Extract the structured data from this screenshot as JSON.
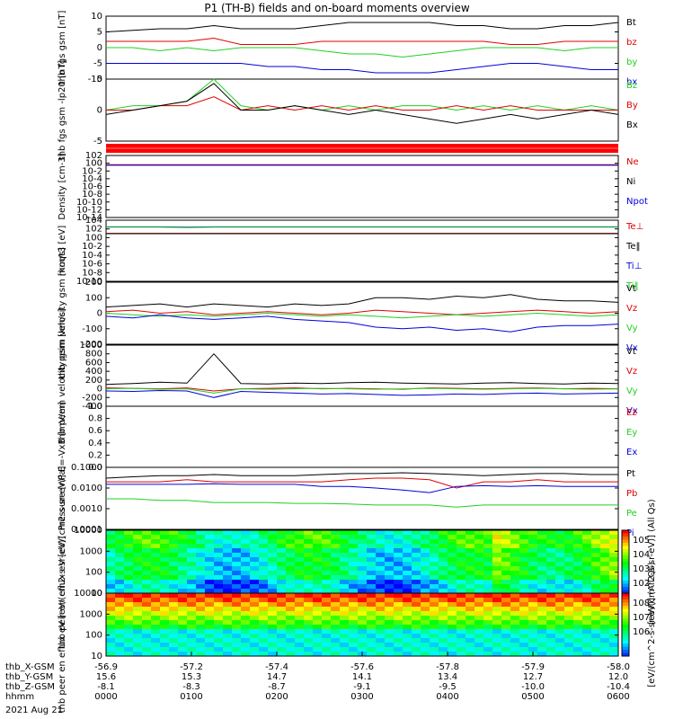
{
  "title": "P1 (TH-B) fields and on-board moments overview",
  "date": "2021 Aug 21",
  "colors": {
    "black": "#000000",
    "red": "#e00000",
    "green": "#20d020",
    "blue": "#0000dd"
  },
  "ephemeris": {
    "labels": [
      "thb_X-GSM",
      "thb_Y-GSM",
      "thb_Z-GSM",
      "hhmm"
    ],
    "columns": [
      [
        "-56.9",
        "15.6",
        "-8.1",
        "0000"
      ],
      [
        "-57.2",
        "15.3",
        "-8.3",
        "0100"
      ],
      [
        "-57.4",
        "14.7",
        "-8.7",
        "0200"
      ],
      [
        "-57.6",
        "14.1",
        "-9.1",
        "0300"
      ],
      [
        "-57.8",
        "13.4",
        "-9.5",
        "0400"
      ],
      [
        "-57.9",
        "12.7",
        "-10.0",
        "0500"
      ],
      [
        "-58.0",
        "12.0",
        "-10.4",
        "0600"
      ]
    ]
  },
  "chart_data": [
    {
      "type": "line",
      "ylabel": "thb fgs gsm [nT]",
      "ylim": [
        -10,
        10
      ],
      "yticks": [
        "10",
        "5",
        "0",
        "-5",
        "-10"
      ],
      "series": [
        {
          "name": "Bt",
          "color": "#000000",
          "values": [
            5,
            5.5,
            6,
            6,
            7,
            6,
            6,
            6,
            7,
            8,
            8,
            8,
            8,
            7,
            7,
            6,
            6,
            7,
            7,
            8
          ]
        },
        {
          "name": "bz",
          "color": "#e00000",
          "values": [
            2,
            2,
            2,
            2,
            3,
            1,
            1,
            1,
            2,
            2,
            2,
            2,
            2,
            2,
            2,
            1,
            1,
            2,
            2,
            2
          ]
        },
        {
          "name": "by",
          "color": "#20d020",
          "values": [
            0,
            0,
            -1,
            0,
            -1,
            0,
            0,
            0,
            -1,
            -2,
            -2,
            -3,
            -2,
            -1,
            0,
            0,
            0,
            -1,
            0,
            0
          ]
        },
        {
          "name": "bx",
          "color": "#0000dd",
          "values": [
            -5,
            -5,
            -5,
            -5,
            -5,
            -5,
            -6,
            -6,
            -7,
            -7,
            -8,
            -8,
            -8,
            -7,
            -6,
            -5,
            -5,
            -6,
            -7,
            -7
          ]
        }
      ]
    },
    {
      "type": "line",
      "ylabel": "thb fgs gsm -lp20 [nT]",
      "ylim": [
        -7,
        7
      ],
      "yticks": [
        "5",
        "0",
        "-5"
      ],
      "series": [
        {
          "name": "Bz",
          "color": "#20d020",
          "values": [
            0,
            1,
            1,
            2,
            8,
            1,
            0,
            1,
            0,
            1,
            0,
            1,
            1,
            0,
            1,
            0,
            1,
            0,
            1,
            0
          ]
        },
        {
          "name": "By",
          "color": "#e00000",
          "values": [
            0,
            0,
            1,
            1,
            3,
            0,
            1,
            0,
            1,
            0,
            1,
            0,
            0,
            1,
            0,
            1,
            0,
            0,
            0,
            0
          ]
        },
        {
          "name": "Bx",
          "color": "#000000",
          "values": [
            -1,
            0,
            1,
            2,
            6,
            0,
            0,
            1,
            0,
            -1,
            0,
            -1,
            -2,
            -3,
            -2,
            -1,
            -2,
            -1,
            0,
            -1
          ]
        }
      ]
    },
    {
      "type": "line",
      "ylabel": "Density [cm-3]",
      "log": true,
      "ylim": [
        1e-14,
        100
      ],
      "yticks": [
        "10^2",
        "10^0",
        "10^-2",
        "10^-4",
        "10^-6",
        "10^-8",
        "10^-10",
        "10^-12",
        "10^-14"
      ],
      "series": [
        {
          "name": "Ne",
          "color": "#e00000",
          "values": [
            0.4,
            0.4,
            0.4,
            0.4,
            0.4,
            0.4,
            0.4,
            0.4,
            0.4,
            0.4,
            0.4,
            0.4,
            0.4,
            0.4,
            0.4,
            0.4,
            0.4,
            0.4,
            0.4,
            0.4
          ]
        },
        {
          "name": "Ni",
          "color": "#000000",
          "values": []
        },
        {
          "name": "Npot",
          "color": "#0000dd",
          "values": [
            0.3,
            0.3,
            0.3,
            0.3,
            0.3,
            0.3,
            0.3,
            0.3,
            0.3,
            0.3,
            0.3,
            0.3,
            0.3,
            0.3,
            0.3,
            0.3,
            0.3,
            0.3,
            0.3,
            0.3
          ]
        }
      ]
    },
    {
      "type": "line",
      "ylabel": "moqt3 [eV]",
      "log": true,
      "ylim": [
        1e-10,
        10000
      ],
      "yticks": [
        "10^4",
        "10^2",
        "10^0",
        "10^-2",
        "10^-4",
        "10^-6",
        "10^-8",
        "10^-10"
      ],
      "series": [
        {
          "name": "Te⊥",
          "color": "#e00000",
          "values": [
            10,
            10,
            10,
            10,
            10,
            10,
            10,
            10,
            10,
            10,
            10,
            10,
            10,
            10,
            10,
            10,
            10,
            10,
            10,
            10
          ]
        },
        {
          "name": "Te‖",
          "color": "#000000",
          "values": [
            8,
            8,
            8,
            8,
            8,
            8,
            8,
            8,
            8,
            8,
            8,
            8,
            8,
            8,
            8,
            8,
            8,
            8,
            8,
            8
          ]
        },
        {
          "name": "Ti⊥",
          "color": "#0000dd",
          "values": [
            300,
            300,
            300,
            250,
            300,
            300,
            300,
            300,
            300,
            300,
            300,
            300,
            300,
            300,
            300,
            300,
            300,
            300,
            300,
            300
          ]
        },
        {
          "name": "Ti‖",
          "color": "#20d020",
          "values": [
            250,
            250,
            250,
            200,
            250,
            250,
            250,
            250,
            250,
            250,
            250,
            250,
            250,
            250,
            250,
            250,
            250,
            250,
            250,
            250
          ]
        }
      ]
    },
    {
      "type": "line",
      "ylabel": "thb peim velocity gsm [km/s]",
      "ylim": [
        -200,
        200
      ],
      "yticks": [
        "200",
        "100",
        "0",
        "-100",
        "-200"
      ],
      "series": [
        {
          "name": "Vt",
          "color": "#000000",
          "values": [
            40,
            50,
            60,
            40,
            60,
            50,
            40,
            60,
            50,
            60,
            100,
            100,
            90,
            110,
            100,
            120,
            90,
            80,
            80,
            70
          ]
        },
        {
          "name": "Vz",
          "color": "#e00000",
          "values": [
            10,
            20,
            0,
            10,
            -10,
            0,
            10,
            0,
            -10,
            0,
            20,
            10,
            0,
            -10,
            0,
            10,
            20,
            10,
            0,
            10
          ]
        },
        {
          "name": "Vy",
          "color": "#20d020",
          "values": [
            0,
            -10,
            -20,
            -10,
            -20,
            -10,
            0,
            -10,
            -20,
            -10,
            -20,
            -30,
            -20,
            -10,
            -20,
            -10,
            0,
            -10,
            -20,
            -10
          ]
        },
        {
          "name": "Vx",
          "color": "#0000dd",
          "values": [
            -20,
            -30,
            -10,
            -30,
            -40,
            -30,
            -20,
            -40,
            -50,
            -60,
            -90,
            -100,
            -90,
            -110,
            -100,
            -120,
            -90,
            -80,
            -80,
            -70
          ]
        }
      ]
    },
    {
      "type": "line",
      "ylabel": "thb peem velocity gsm [km/s]",
      "ylim": [
        -400,
        1000
      ],
      "yticks": [
        "1000",
        "800",
        "600",
        "400",
        "200",
        "0",
        "-200",
        "-400"
      ],
      "series": [
        {
          "name": "Vt",
          "color": "#000000",
          "values": [
            100,
            120,
            150,
            130,
            800,
            120,
            110,
            130,
            120,
            140,
            150,
            130,
            120,
            110,
            130,
            140,
            120,
            110,
            130,
            120
          ]
        },
        {
          "name": "Vz",
          "color": "#e00000",
          "values": [
            20,
            10,
            0,
            20,
            -50,
            0,
            10,
            20,
            0,
            10,
            0,
            -10,
            20,
            10,
            0,
            10,
            20,
            0,
            10,
            0
          ]
        },
        {
          "name": "Vy",
          "color": "#20d020",
          "values": [
            0,
            10,
            -10,
            0,
            -100,
            0,
            -10,
            0,
            10,
            0,
            -10,
            0,
            10,
            0,
            -10,
            0,
            10,
            0,
            -10,
            0
          ]
        },
        {
          "name": "Vx",
          "color": "#0000dd",
          "values": [
            -50,
            -60,
            -40,
            -50,
            -200,
            -60,
            -80,
            -100,
            -120,
            -110,
            -130,
            -150,
            -140,
            -120,
            -130,
            -110,
            -100,
            -120,
            -110,
            -100
          ]
        }
      ]
    },
    {
      "type": "line",
      "ylabel": "E=-VxB [mV/m]",
      "ylim": [
        0,
        1
      ],
      "yticks": [
        "1.0",
        "0.8",
        "0.6",
        "0.4",
        "0.2",
        "0.0"
      ],
      "series": [
        {
          "name": "Ez",
          "color": "#e00000",
          "values": []
        },
        {
          "name": "Ey",
          "color": "#20d020",
          "values": []
        },
        {
          "name": "Ex",
          "color": "#0000dd",
          "values": []
        }
      ]
    },
    {
      "type": "line",
      "ylabel": "Pressure [nPa]",
      "log": true,
      "ylim": [
        0.0001,
        0.1
      ],
      "yticks": [
        "0.1000",
        "0.0100",
        "0.0010",
        "0.0001"
      ],
      "series": [
        {
          "name": "Pt",
          "color": "#000000",
          "values": [
            0.03,
            0.035,
            0.04,
            0.04,
            0.045,
            0.04,
            0.04,
            0.04,
            0.045,
            0.05,
            0.05,
            0.055,
            0.05,
            0.045,
            0.04,
            0.045,
            0.05,
            0.05,
            0.045,
            0.045
          ]
        },
        {
          "name": "Pb",
          "color": "#e00000",
          "values": [
            0.02,
            0.02,
            0.02,
            0.025,
            0.02,
            0.02,
            0.02,
            0.02,
            0.02,
            0.025,
            0.03,
            0.03,
            0.025,
            0.01,
            0.02,
            0.02,
            0.025,
            0.02,
            0.02,
            0.02
          ]
        },
        {
          "name": "Pe",
          "color": "#20d020",
          "values": [
            0.003,
            0.003,
            0.0025,
            0.0025,
            0.002,
            0.002,
            0.002,
            0.0018,
            0.0018,
            0.0017,
            0.0015,
            0.0015,
            0.0015,
            0.0012,
            0.0015,
            0.0015,
            0.0015,
            0.0015,
            0.0015,
            0.0015
          ]
        },
        {
          "name": "Pi",
          "color": "#0000dd",
          "values": [
            0.015,
            0.015,
            0.015,
            0.015,
            0.016,
            0.015,
            0.015,
            0.015,
            0.012,
            0.012,
            0.01,
            0.008,
            0.006,
            0.012,
            0.013,
            0.012,
            0.013,
            0.012,
            0.012,
            0.012
          ]
        }
      ]
    },
    {
      "type": "heatmap",
      "ylabel": "thb peir en eflux eV [eV/(cm2-s-sr-eV)]",
      "log": true,
      "ylim": [
        10,
        10000
      ],
      "yticks": [
        "10000",
        "1000",
        "100",
        "10"
      ],
      "colorbar": {
        "label": "[eV/(cm^2-s-sr-eV)] (All Qs)",
        "ticks": [
          "10^5",
          "10^4",
          "10^3",
          "10^2"
        ]
      }
    },
    {
      "type": "heatmap",
      "ylabel": "thb peer en eflux eV [eV/(cm2-s-sr-eV)]",
      "log": true,
      "ylim": [
        10,
        20000
      ],
      "yticks": [
        "10000",
        "1000",
        "100",
        "10"
      ],
      "colorbar": {
        "label": "[eV/(cm^2-s-sr-eV)] (All Qs)",
        "ticks": [
          "10^8",
          "10^7",
          "10^6"
        ]
      }
    }
  ]
}
